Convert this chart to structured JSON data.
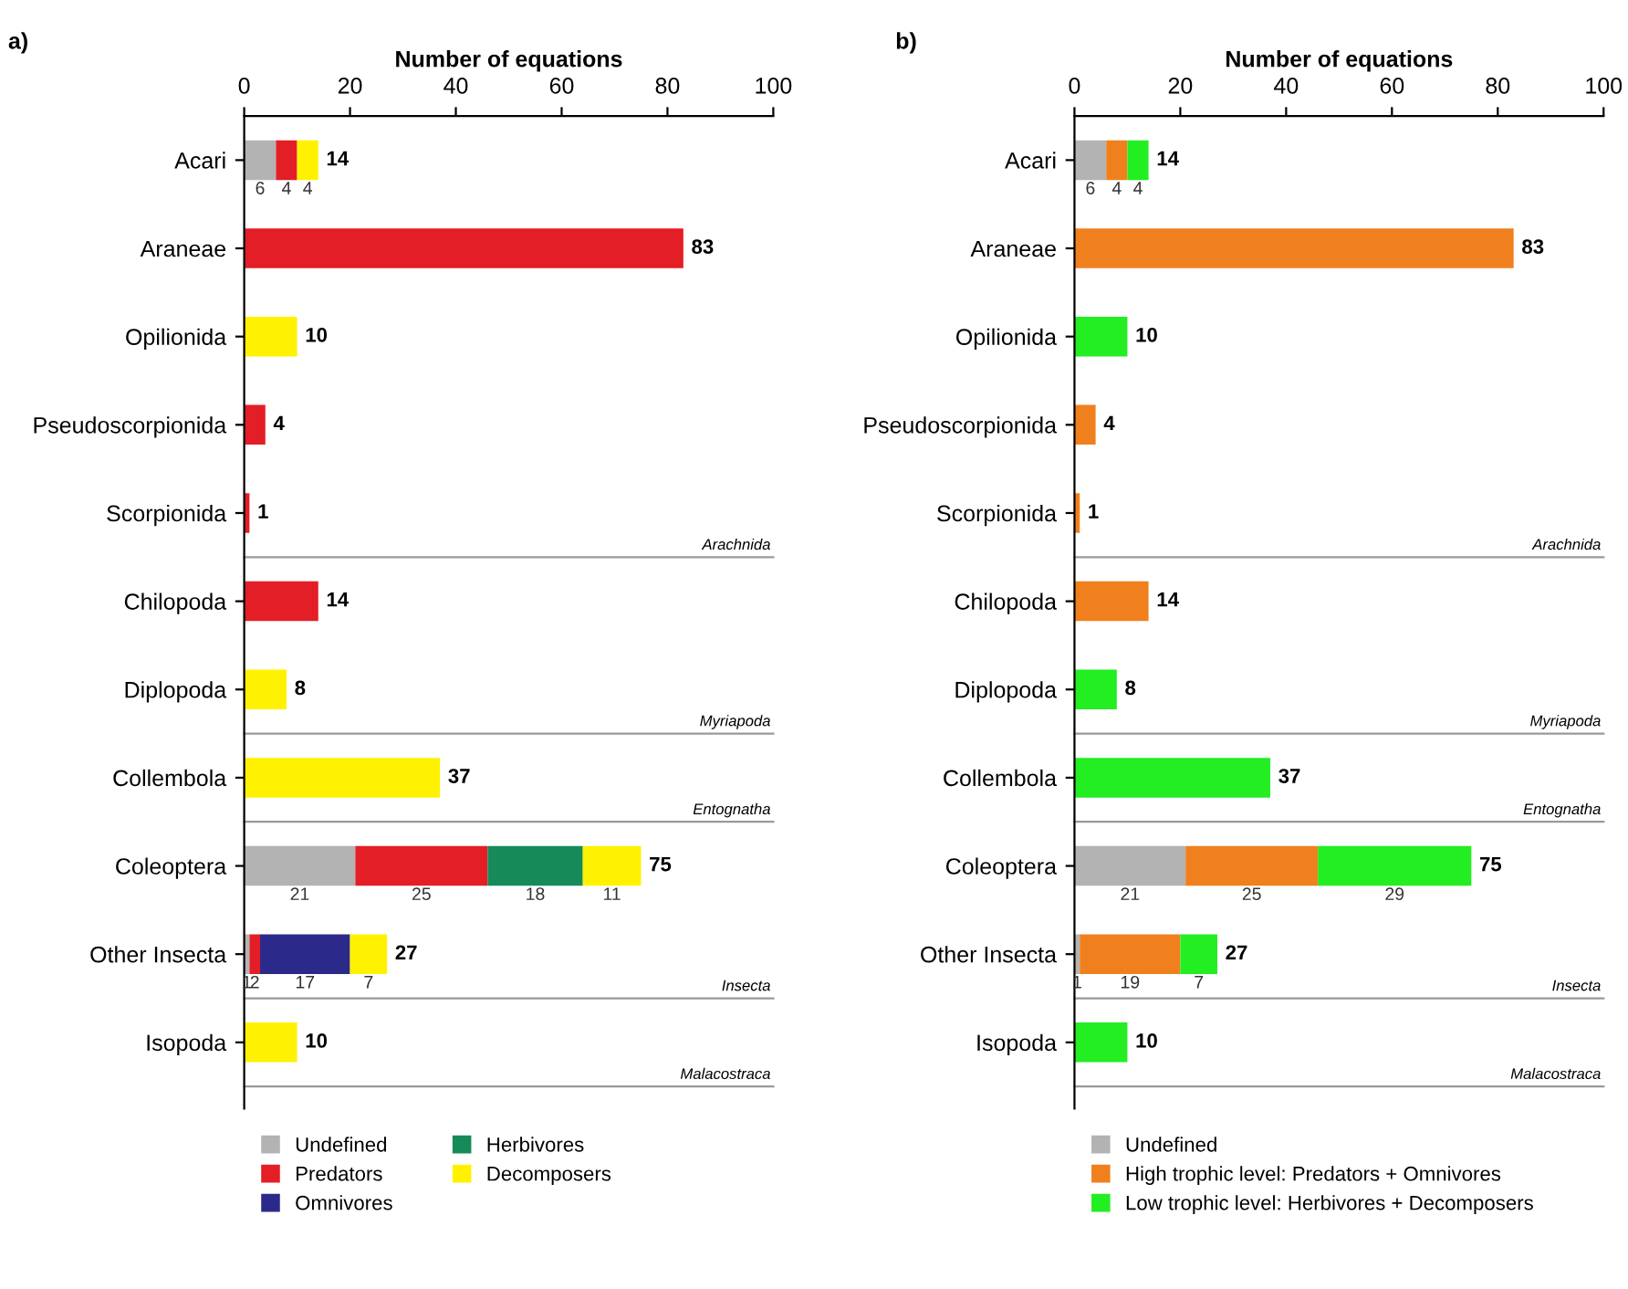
{
  "chart_data": [
    {
      "type": "bar",
      "title": "a)",
      "xlabel": "Number of equations",
      "orientation": "horizontal",
      "stacked": true,
      "categories": [
        "Acari",
        "Araneae",
        "Opilionida",
        "Pseudoscorpionida",
        "Scorpionida",
        "Chilopoda",
        "Diplopoda",
        "Collembola",
        "Coleoptera",
        "Other Insecta",
        "Isopoda"
      ],
      "series": [
        {
          "name": "Undefined",
          "color": "#b3b3b3",
          "values": [
            6,
            0,
            0,
            0,
            0,
            0,
            0,
            0,
            21,
            1,
            0
          ],
          "value_labels": [
            "6",
            null,
            null,
            null,
            null,
            null,
            null,
            null,
            "21",
            "1",
            null
          ]
        },
        {
          "name": "Predators",
          "color": "#e41e26",
          "values": [
            4,
            83,
            0,
            4,
            1,
            14,
            0,
            0,
            25,
            2,
            0
          ],
          "value_labels": [
            "4",
            null,
            null,
            null,
            null,
            null,
            null,
            null,
            "25",
            "2",
            null
          ]
        },
        {
          "name": "Omnivores",
          "color": "#2b2a8a",
          "values": [
            0,
            0,
            0,
            0,
            0,
            0,
            0,
            0,
            0,
            17,
            0
          ],
          "value_labels": [
            null,
            null,
            null,
            null,
            null,
            null,
            null,
            null,
            null,
            "17",
            null
          ]
        },
        {
          "name": "Herbivores",
          "color": "#178a5a",
          "values": [
            0,
            0,
            0,
            0,
            0,
            0,
            0,
            0,
            18,
            0,
            0
          ],
          "value_labels": [
            null,
            null,
            null,
            null,
            null,
            null,
            null,
            null,
            "18",
            null,
            null
          ]
        },
        {
          "name": "Decomposers",
          "color": "#fff200",
          "values": [
            4,
            0,
            10,
            0,
            0,
            0,
            8,
            37,
            11,
            7,
            10
          ],
          "value_labels": [
            "4",
            null,
            null,
            null,
            null,
            null,
            null,
            null,
            "11",
            "7",
            null
          ]
        }
      ],
      "totals": [
        "14",
        "83",
        "10",
        "4",
        "1",
        "14",
        "8",
        "37",
        "75",
        "27",
        "10"
      ],
      "ref_lines": [
        {
          "axis": "y",
          "value": "Scorpionida",
          "label": "Arachnida"
        },
        {
          "axis": "y",
          "value": "Diplopoda",
          "label": "Myriapoda"
        },
        {
          "axis": "y",
          "value": "Collembola",
          "label": "Entognatha"
        },
        {
          "axis": "y",
          "value": "Other Insecta",
          "label": "Insecta"
        },
        {
          "axis": "y",
          "value": "Isopoda",
          "label": "Malacostraca"
        }
      ],
      "xlim": [
        0,
        100
      ],
      "xticks": [
        0,
        20,
        40,
        60,
        80,
        100
      ],
      "grid": false,
      "legend": "bottom"
    },
    {
      "type": "bar",
      "title": "b)",
      "xlabel": "Number of equations",
      "orientation": "horizontal",
      "stacked": true,
      "categories": [
        "Acari",
        "Araneae",
        "Opilionida",
        "Pseudoscorpionida",
        "Scorpionida",
        "Chilopoda",
        "Diplopoda",
        "Collembola",
        "Coleoptera",
        "Other Insecta",
        "Isopoda"
      ],
      "series": [
        {
          "name": "Undefined",
          "color": "#b3b3b3",
          "values": [
            6,
            0,
            0,
            0,
            0,
            0,
            0,
            0,
            21,
            1,
            0
          ],
          "value_labels": [
            "6",
            null,
            null,
            null,
            null,
            null,
            null,
            null,
            "21",
            "1",
            null
          ]
        },
        {
          "name": "High trophic level: Predators + Omnivores",
          "color": "#f0801e",
          "values": [
            4,
            83,
            0,
            4,
            1,
            14,
            0,
            0,
            25,
            19,
            0
          ],
          "value_labels": [
            "4",
            null,
            null,
            null,
            null,
            null,
            null,
            null,
            "25",
            "19",
            null
          ]
        },
        {
          "name": "Low trophic level: Herbivores + Decomposers",
          "color": "#22ee22",
          "values": [
            4,
            0,
            10,
            0,
            0,
            0,
            8,
            37,
            29,
            7,
            10
          ],
          "value_labels": [
            "4",
            null,
            null,
            null,
            null,
            null,
            null,
            null,
            "29",
            "7",
            null
          ]
        }
      ],
      "totals": [
        "14",
        "83",
        "10",
        "4",
        "1",
        "14",
        "8",
        "37",
        "75",
        "27",
        "10"
      ],
      "ref_lines": [
        {
          "axis": "y",
          "value": "Scorpionida",
          "label": "Arachnida"
        },
        {
          "axis": "y",
          "value": "Diplopoda",
          "label": "Myriapoda"
        },
        {
          "axis": "y",
          "value": "Collembola",
          "label": "Entognatha"
        },
        {
          "axis": "y",
          "value": "Other Insecta",
          "label": "Insecta"
        },
        {
          "axis": "y",
          "value": "Isopoda",
          "label": "Malacostraca"
        }
      ],
      "xlim": [
        0,
        100
      ],
      "xticks": [
        0,
        20,
        40,
        60,
        80,
        100
      ],
      "grid": false,
      "legend": "bottom"
    }
  ]
}
